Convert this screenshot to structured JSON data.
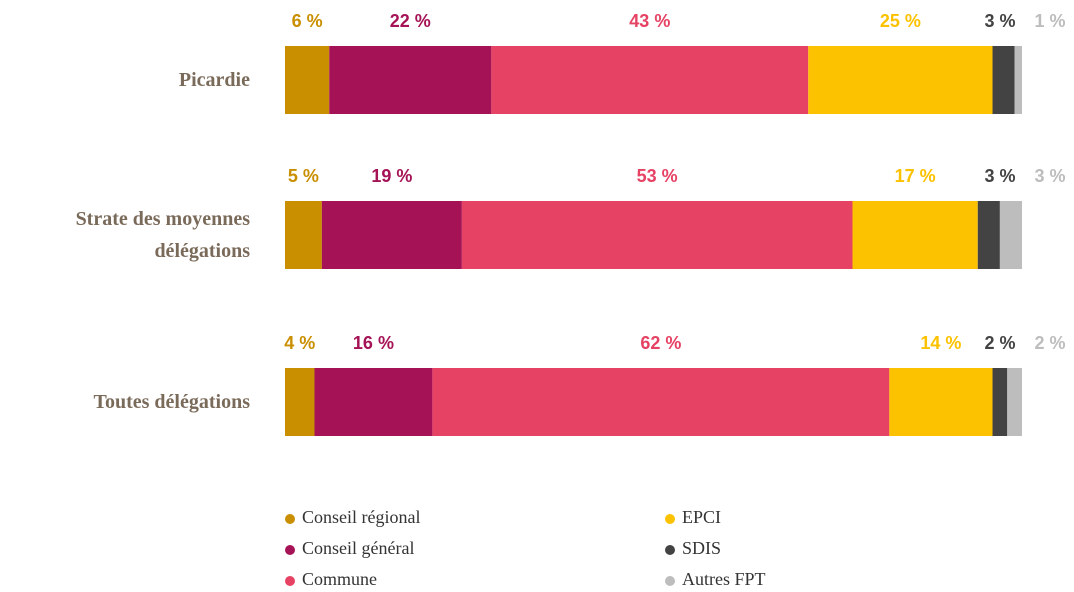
{
  "chart_data": {
    "type": "stacked-barh",
    "categories": [
      "Picardie",
      "Strate des moyennes délégations",
      "Toutes délégations"
    ],
    "xlim": [
      0,
      100
    ],
    "series": [
      {
        "name": "Conseil régional",
        "color": "#c98f00",
        "values": [
          6,
          5,
          4
        ],
        "value_labels": [
          "6 %",
          "5 %",
          "4 %"
        ]
      },
      {
        "name": "Conseil général",
        "color": "#a51356",
        "values": [
          22,
          19,
          16
        ],
        "value_labels": [
          "22 %",
          "19 %",
          "16 %"
        ]
      },
      {
        "name": "Commune",
        "color": "#e64264",
        "values": [
          43,
          53,
          62
        ],
        "value_labels": [
          "43 %",
          "53 %",
          "62 %"
        ]
      },
      {
        "name": "EPCI",
        "color": "#fcc200",
        "values": [
          25,
          17,
          14
        ],
        "value_labels": [
          "25 %",
          "17 %",
          "14 %"
        ]
      },
      {
        "name": "SDIS",
        "color": "#434343",
        "values": [
          3,
          3,
          2
        ],
        "value_labels": [
          "3 %",
          "3 %",
          "2 %"
        ]
      },
      {
        "name": "Autres FPT",
        "color": "#bdbdbd",
        "values": [
          1,
          3,
          2
        ],
        "value_labels": [
          "1 %",
          "3 %",
          "2 %"
        ]
      }
    ]
  }
}
